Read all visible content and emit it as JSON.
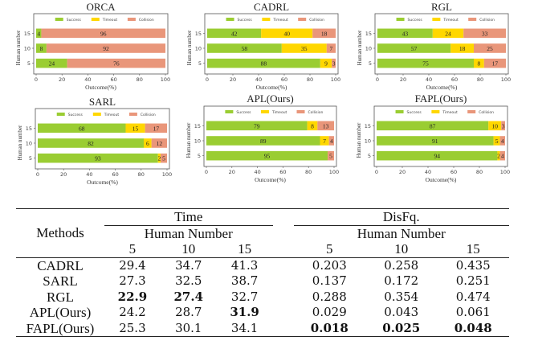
{
  "chart_data": [
    {
      "type": "bar",
      "stacked": true,
      "orientation": "horizontal",
      "title": "ORCA",
      "xlabel": "Outcome(%)",
      "ylabel": "Human number",
      "categories": [
        "5",
        "10",
        "15"
      ],
      "xlim": [
        0,
        100
      ],
      "xticks": [
        "0",
        "20",
        "40",
        "60",
        "80",
        "100"
      ],
      "legend_position": "top",
      "series": [
        {
          "name": "Success",
          "values": [
            24,
            8,
            4
          ]
        },
        {
          "name": "Timeout",
          "values": [
            0,
            0,
            0
          ]
        },
        {
          "name": "Collision",
          "values": [
            76,
            92,
            96
          ]
        }
      ]
    },
    {
      "type": "bar",
      "stacked": true,
      "orientation": "horizontal",
      "title": "CADRL",
      "xlabel": "Outcome(%)",
      "ylabel": "Human number",
      "categories": [
        "5",
        "10",
        "15"
      ],
      "xlim": [
        0,
        100
      ],
      "xticks": [
        "0",
        "20",
        "40",
        "60",
        "80",
        "100"
      ],
      "legend_position": "top",
      "series": [
        {
          "name": "Success",
          "values": [
            88,
            58,
            42
          ]
        },
        {
          "name": "Timeout",
          "values": [
            9,
            35,
            40
          ]
        },
        {
          "name": "Collision",
          "values": [
            3,
            7,
            18
          ]
        }
      ]
    },
    {
      "type": "bar",
      "stacked": true,
      "orientation": "horizontal",
      "title": "RGL",
      "xlabel": "Outcome(%)",
      "ylabel": "Human number",
      "categories": [
        "5",
        "10",
        "15"
      ],
      "xlim": [
        0,
        100
      ],
      "xticks": [
        "0",
        "20",
        "40",
        "60",
        "80",
        "100"
      ],
      "legend_position": "top",
      "series": [
        {
          "name": "Success",
          "values": [
            75,
            57,
            43
          ]
        },
        {
          "name": "Timeout",
          "values": [
            8,
            18,
            24
          ]
        },
        {
          "name": "Collision",
          "values": [
            17,
            25,
            33
          ]
        }
      ]
    },
    {
      "type": "bar",
      "stacked": true,
      "orientation": "horizontal",
      "title": "SARL",
      "xlabel": "Outcome(%)",
      "ylabel": "Human number",
      "categories": [
        "5",
        "10",
        "15"
      ],
      "xlim": [
        0,
        100
      ],
      "xticks": [
        "0",
        "20",
        "40",
        "60",
        "80",
        "100"
      ],
      "legend_position": "top",
      "series": [
        {
          "name": "Success",
          "values": [
            93,
            82,
            68
          ]
        },
        {
          "name": "Timeout",
          "values": [
            2,
            6,
            15
          ]
        },
        {
          "name": "Collision",
          "values": [
            5,
            12,
            17
          ]
        }
      ]
    },
    {
      "type": "bar",
      "stacked": true,
      "orientation": "horizontal",
      "title": "APL(Ours)",
      "xlabel": "Outcome(%)",
      "ylabel": "Human number",
      "categories": [
        "5",
        "10",
        "15"
      ],
      "xlim": [
        0,
        100
      ],
      "xticks": [
        "0",
        "20",
        "40",
        "60",
        "80",
        "100"
      ],
      "legend_position": "top",
      "series": [
        {
          "name": "Success",
          "values": [
            95,
            89,
            79
          ]
        },
        {
          "name": "Timeout",
          "values": [
            0,
            7,
            8
          ]
        },
        {
          "name": "Collision",
          "values": [
            5,
            4,
            13
          ]
        }
      ]
    },
    {
      "type": "bar",
      "stacked": true,
      "orientation": "horizontal",
      "title": "FAPL(Ours)",
      "xlabel": "Outcome(%)",
      "ylabel": "Human number",
      "categories": [
        "5",
        "10",
        "15"
      ],
      "xlim": [
        0,
        100
      ],
      "xticks": [
        "0",
        "20",
        "40",
        "60",
        "80",
        "100"
      ],
      "legend_position": "top",
      "series": [
        {
          "name": "Success",
          "values": [
            94,
            91,
            87
          ]
        },
        {
          "name": "Timeout",
          "values": [
            2,
            5,
            10
          ]
        },
        {
          "name": "Collision",
          "values": [
            4,
            4,
            3
          ]
        }
      ]
    }
  ],
  "colors": {
    "Success": "#9acd32",
    "Timeout": "#ffd700",
    "Collision": "#e9967a",
    "frame": "#555555",
    "text": "#222222"
  },
  "table": {
    "methods_header": "Methods",
    "groups": [
      {
        "label": "Time",
        "sub_label": "Human Number",
        "columns": [
          "5",
          "10",
          "15"
        ]
      },
      {
        "label": "DisFq.",
        "sub_label": "Human Number",
        "columns": [
          "5",
          "10",
          "15"
        ]
      }
    ],
    "rows": [
      {
        "method": "CADRL",
        "time": [
          "29.4",
          "34.7",
          "41.3"
        ],
        "disfq": [
          "0.203",
          "0.258",
          "0.435"
        ],
        "time_bold": [
          false,
          false,
          false
        ],
        "disfq_bold": [
          false,
          false,
          false
        ]
      },
      {
        "method": "SARL",
        "time": [
          "27.3",
          "32.5",
          "38.7"
        ],
        "disfq": [
          "0.137",
          "0.172",
          "0.251"
        ],
        "time_bold": [
          false,
          false,
          false
        ],
        "disfq_bold": [
          false,
          false,
          false
        ]
      },
      {
        "method": "RGL",
        "time": [
          "22.9",
          "27.4",
          "32.7"
        ],
        "disfq": [
          "0.288",
          "0.354",
          "0.474"
        ],
        "time_bold": [
          true,
          true,
          false
        ],
        "disfq_bold": [
          false,
          false,
          false
        ]
      },
      {
        "method": "APL(Ours)",
        "time": [
          "24.2",
          "28.7",
          "31.9"
        ],
        "disfq": [
          "0.029",
          "0.043",
          "0.061"
        ],
        "time_bold": [
          false,
          false,
          true
        ],
        "disfq_bold": [
          false,
          false,
          false
        ]
      },
      {
        "method": "FAPL(Ours)",
        "time": [
          "25.3",
          "30.1",
          "34.1"
        ],
        "disfq": [
          "0.018",
          "0.025",
          "0.048"
        ],
        "time_bold": [
          false,
          false,
          false
        ],
        "disfq_bold": [
          true,
          true,
          true
        ]
      }
    ]
  }
}
